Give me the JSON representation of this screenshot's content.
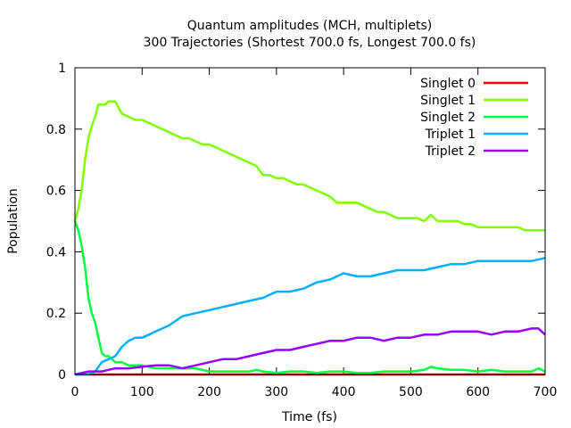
{
  "chart_data": {
    "type": "line",
    "title": "Quantum amplitudes (MCH, multiplets)",
    "subtitle": "300 Trajectories (Shortest 700.0 fs, Longest 700.0 fs)",
    "xlabel": "Time (fs)",
    "ylabel": "Population",
    "xlim": [
      0,
      700
    ],
    "ylim": [
      0,
      1
    ],
    "xticks": [
      0,
      100,
      200,
      300,
      400,
      500,
      600,
      700
    ],
    "yticks": [
      0,
      0.2,
      0.4,
      0.6,
      0.8,
      1
    ],
    "ytick_labels": [
      "0",
      "0.2",
      "0.4",
      "0.6",
      "0.8",
      "1"
    ],
    "grid": false,
    "legend_position": "top-right",
    "series": [
      {
        "name": "Singlet 0",
        "color": "#ff0000",
        "x": [
          0,
          100,
          200,
          300,
          400,
          500,
          600,
          700
        ],
        "y": [
          0,
          0,
          0,
          0,
          0,
          0,
          0,
          0
        ]
      },
      {
        "name": "Singlet 1",
        "color": "#80ff00",
        "x": [
          0,
          5,
          10,
          15,
          20,
          25,
          30,
          35,
          40,
          45,
          50,
          55,
          60,
          65,
          70,
          80,
          90,
          100,
          110,
          120,
          130,
          140,
          150,
          160,
          170,
          180,
          190,
          200,
          210,
          220,
          230,
          240,
          250,
          260,
          270,
          280,
          290,
          300,
          310,
          320,
          330,
          340,
          350,
          360,
          370,
          380,
          390,
          400,
          410,
          420,
          430,
          440,
          450,
          460,
          470,
          480,
          490,
          500,
          510,
          520,
          530,
          540,
          550,
          560,
          570,
          580,
          590,
          600,
          610,
          620,
          630,
          640,
          650,
          660,
          670,
          680,
          690,
          700
        ],
        "y": [
          0.5,
          0.54,
          0.6,
          0.7,
          0.77,
          0.81,
          0.84,
          0.88,
          0.88,
          0.88,
          0.89,
          0.89,
          0.89,
          0.87,
          0.85,
          0.84,
          0.83,
          0.83,
          0.82,
          0.81,
          0.8,
          0.79,
          0.78,
          0.77,
          0.77,
          0.76,
          0.75,
          0.75,
          0.74,
          0.73,
          0.72,
          0.71,
          0.7,
          0.69,
          0.68,
          0.65,
          0.65,
          0.64,
          0.64,
          0.63,
          0.62,
          0.62,
          0.61,
          0.6,
          0.59,
          0.58,
          0.56,
          0.56,
          0.56,
          0.56,
          0.55,
          0.54,
          0.53,
          0.53,
          0.52,
          0.51,
          0.51,
          0.51,
          0.51,
          0.5,
          0.52,
          0.5,
          0.5,
          0.5,
          0.5,
          0.49,
          0.49,
          0.48,
          0.48,
          0.48,
          0.48,
          0.48,
          0.48,
          0.48,
          0.47,
          0.47,
          0.47,
          0.47
        ]
      },
      {
        "name": "Singlet 2",
        "color": "#00ff40",
        "x": [
          0,
          5,
          10,
          15,
          20,
          25,
          30,
          35,
          40,
          45,
          50,
          60,
          70,
          80,
          90,
          100,
          120,
          140,
          160,
          180,
          200,
          220,
          240,
          260,
          270,
          280,
          300,
          320,
          340,
          360,
          380,
          400,
          420,
          440,
          460,
          480,
          500,
          520,
          530,
          540,
          560,
          580,
          600,
          620,
          640,
          660,
          680,
          690,
          700
        ],
        "y": [
          0.5,
          0.47,
          0.42,
          0.35,
          0.25,
          0.2,
          0.17,
          0.12,
          0.07,
          0.06,
          0.06,
          0.04,
          0.04,
          0.03,
          0.03,
          0.03,
          0.02,
          0.02,
          0.02,
          0.02,
          0.01,
          0.01,
          0.01,
          0.01,
          0.015,
          0.01,
          0.005,
          0.01,
          0.01,
          0.005,
          0.01,
          0.01,
          0.005,
          0.005,
          0.01,
          0.01,
          0.01,
          0.015,
          0.025,
          0.02,
          0.015,
          0.015,
          0.01,
          0.015,
          0.01,
          0.01,
          0.01,
          0.02,
          0.01
        ]
      },
      {
        "name": "Triplet 1",
        "color": "#00b0ff",
        "x": [
          0,
          10,
          20,
          30,
          40,
          50,
          60,
          70,
          80,
          90,
          100,
          110,
          120,
          140,
          160,
          180,
          200,
          220,
          240,
          260,
          280,
          300,
          320,
          340,
          360,
          380,
          400,
          420,
          440,
          460,
          480,
          500,
          520,
          540,
          560,
          580,
          600,
          620,
          640,
          660,
          680,
          700
        ],
        "y": [
          0.0,
          0.0,
          0.0,
          0.01,
          0.04,
          0.05,
          0.06,
          0.09,
          0.11,
          0.12,
          0.12,
          0.13,
          0.14,
          0.16,
          0.19,
          0.2,
          0.21,
          0.22,
          0.23,
          0.24,
          0.25,
          0.27,
          0.27,
          0.28,
          0.3,
          0.31,
          0.33,
          0.32,
          0.32,
          0.33,
          0.34,
          0.34,
          0.34,
          0.35,
          0.36,
          0.36,
          0.37,
          0.37,
          0.37,
          0.37,
          0.37,
          0.38
        ]
      },
      {
        "name": "Triplet 2",
        "color": "#9900ff",
        "x": [
          0,
          10,
          20,
          30,
          40,
          50,
          60,
          80,
          100,
          120,
          140,
          160,
          180,
          200,
          220,
          240,
          260,
          280,
          300,
          320,
          340,
          360,
          380,
          400,
          420,
          440,
          460,
          480,
          500,
          520,
          540,
          560,
          580,
          600,
          620,
          640,
          660,
          680,
          690,
          700
        ],
        "y": [
          0.0,
          0.005,
          0.01,
          0.01,
          0.01,
          0.015,
          0.02,
          0.02,
          0.025,
          0.03,
          0.03,
          0.02,
          0.03,
          0.04,
          0.05,
          0.05,
          0.06,
          0.07,
          0.08,
          0.08,
          0.09,
          0.1,
          0.11,
          0.11,
          0.12,
          0.12,
          0.11,
          0.12,
          0.12,
          0.13,
          0.13,
          0.14,
          0.14,
          0.14,
          0.13,
          0.14,
          0.14,
          0.15,
          0.15,
          0.13
        ]
      }
    ]
  }
}
